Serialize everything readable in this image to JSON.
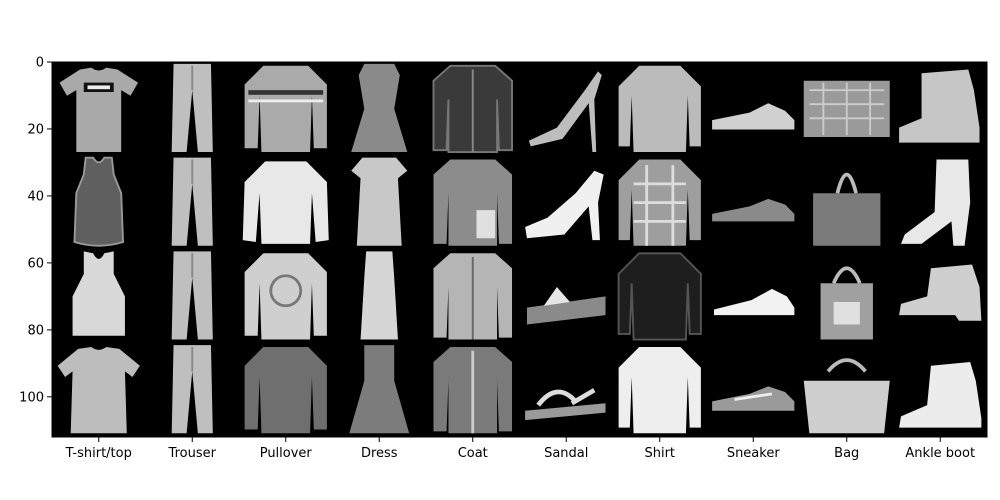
{
  "chart_data": {
    "type": "heatmap",
    "title": "",
    "xlabel": "",
    "ylabel": "",
    "colormap": "gray",
    "background_color": "#000000",
    "grid": false,
    "ylim": [
      112,
      0
    ],
    "yticks": [
      0,
      20,
      40,
      60,
      80,
      100
    ],
    "ytick_labels": [
      "0",
      "20",
      "40",
      "60",
      "80",
      "100"
    ],
    "categories": [
      "T-shirt/top",
      "Trouser",
      "Pullover",
      "Dress",
      "Coat",
      "Sandal",
      "Shirt",
      "Sneaker",
      "Bag",
      "Ankle boot"
    ],
    "grid_layout": {
      "rows": 4,
      "columns": 10,
      "tile_pixels": 28
    },
    "tiles": [
      {
        "category": "T-shirt/top",
        "items": [
          "tshirt",
          "tank",
          "tank-light",
          "tshirt-wide"
        ]
      },
      {
        "category": "Trouser",
        "items": [
          "trouser",
          "trouser",
          "trouser",
          "trouser"
        ]
      },
      {
        "category": "Pullover",
        "items": [
          "pullover-striped",
          "pullover-light",
          "pullover-pattern",
          "pullover-dark"
        ]
      },
      {
        "category": "Dress",
        "items": [
          "dress-peplum",
          "dress-light",
          "dress-long",
          "dress-flared"
        ]
      },
      {
        "category": "Coat",
        "items": [
          "coat-dark",
          "coat-pattern",
          "coat-light",
          "coat-zip"
        ]
      },
      {
        "category": "Sandal",
        "items": [
          "sandal-heel",
          "sandal-heel-white",
          "sandal-wedge",
          "sandal-flat"
        ]
      },
      {
        "category": "Shirt",
        "items": [
          "shirt-light",
          "shirt-plaid",
          "shirt-dark",
          "shirt-white"
        ]
      },
      {
        "category": "Sneaker",
        "items": [
          "sneaker",
          "sneaker-dark",
          "sneaker-white",
          "sneaker-striped"
        ]
      },
      {
        "category": "Bag",
        "items": [
          "bag-clutch",
          "bag-tote",
          "bag-shopper",
          "bag-satchel"
        ]
      },
      {
        "category": "Ankle boot",
        "items": [
          "boot-sneaker",
          "boot-heel",
          "boot-low",
          "boot-white"
        ]
      }
    ]
  }
}
